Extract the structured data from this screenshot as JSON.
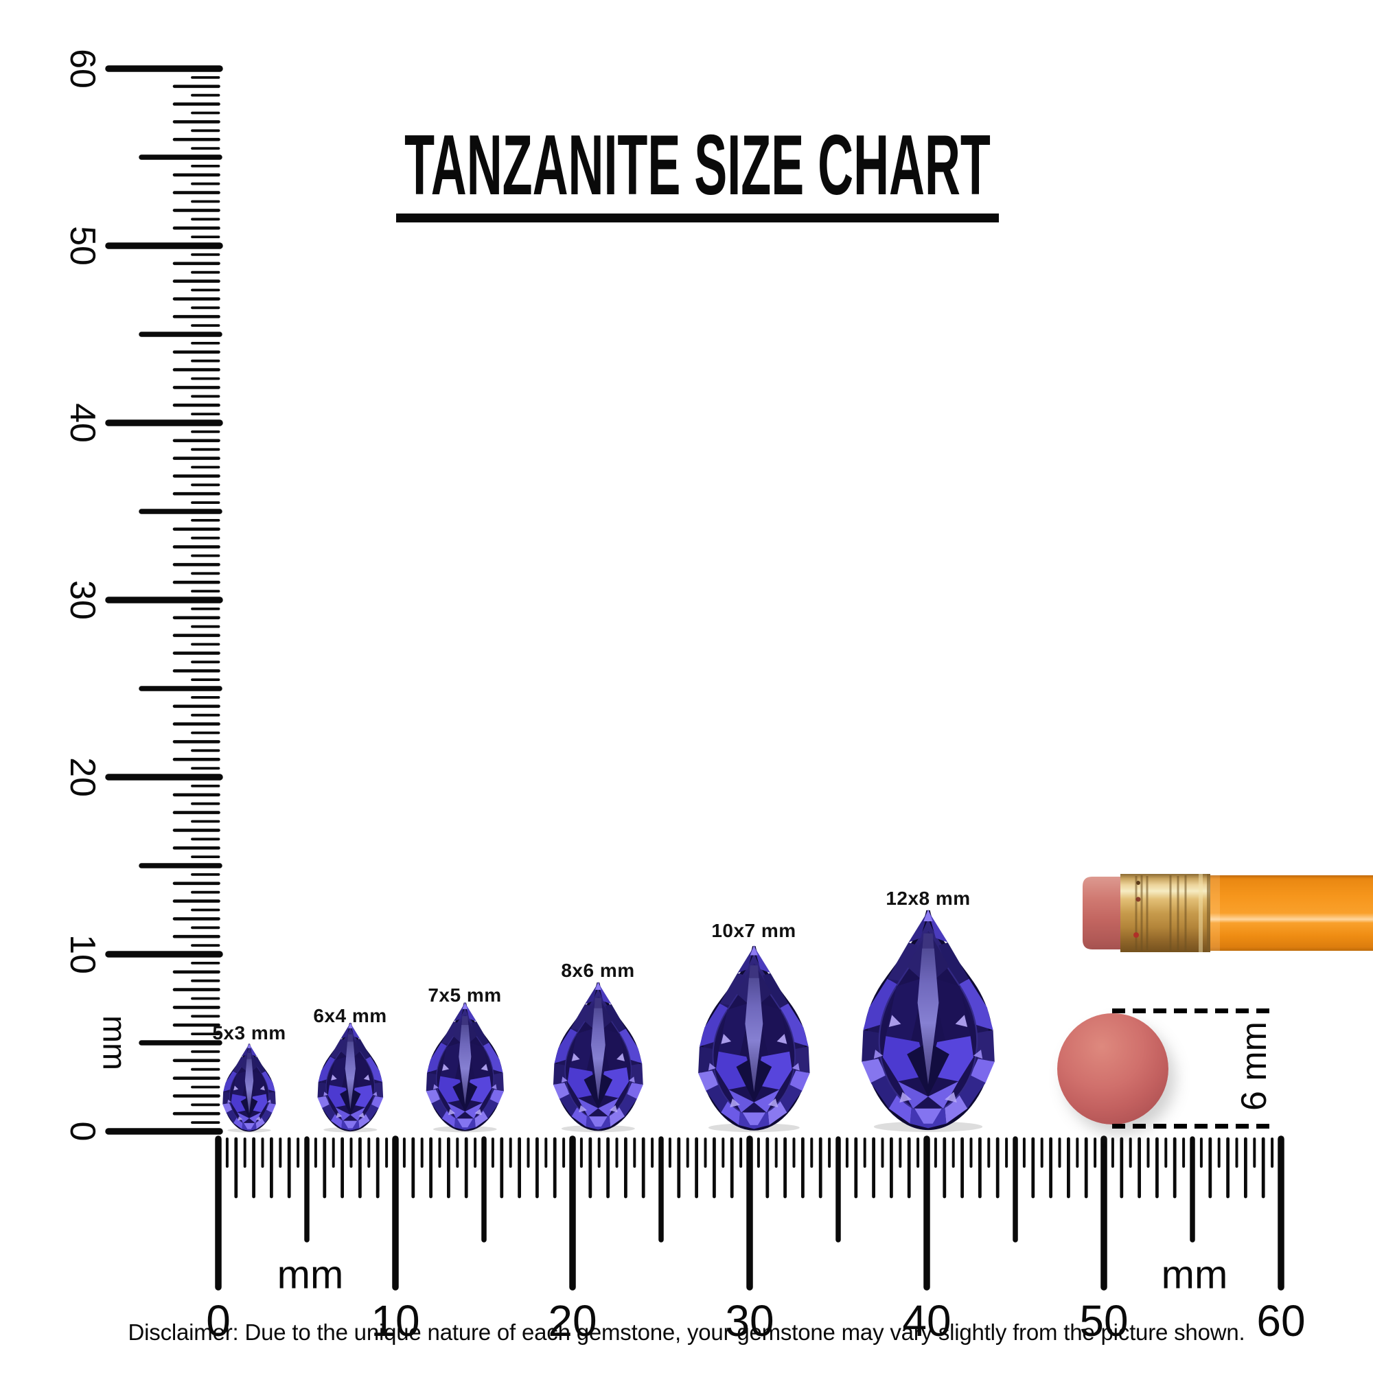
{
  "title": {
    "text": "TANZANITE SIZE CHART"
  },
  "vertical_ruler": {
    "unit": "mm",
    "labels": [
      "0",
      "10",
      "20",
      "30",
      "40",
      "50",
      "60"
    ]
  },
  "horizontal_ruler": {
    "unit_left": "mm",
    "unit_right": "mm",
    "labels": [
      "0",
      "10",
      "20",
      "30",
      "40",
      "50",
      "60"
    ]
  },
  "gems": [
    {
      "label": "5x3 mm",
      "length_mm": 5,
      "width_mm": 3
    },
    {
      "label": "6x4 mm",
      "length_mm": 6,
      "width_mm": 4
    },
    {
      "label": "7x5 mm",
      "length_mm": 7,
      "width_mm": 5
    },
    {
      "label": "8x6 mm",
      "length_mm": 8,
      "width_mm": 6
    },
    {
      "label": "10x7 mm",
      "length_mm": 10,
      "width_mm": 7
    },
    {
      "label": "12x8 mm",
      "length_mm": 12,
      "width_mm": 8
    }
  ],
  "annotation": {
    "eraser_diameter_label": "6 mm"
  },
  "disclaimer": {
    "text": "Disclaimer: Due to the unique nature of each gemstone, your gemstone may vary slightly from the picture shown."
  },
  "colors": {
    "ink": "#0a0a0a",
    "gem_dark": "#1a1152",
    "gem_mid": "#4c3ad0",
    "gem_light": "#b9abfa",
    "pencil_body": "#f6961c",
    "ferrule_gold": "#c79b4c",
    "eraser_pink": "#c2605f"
  }
}
